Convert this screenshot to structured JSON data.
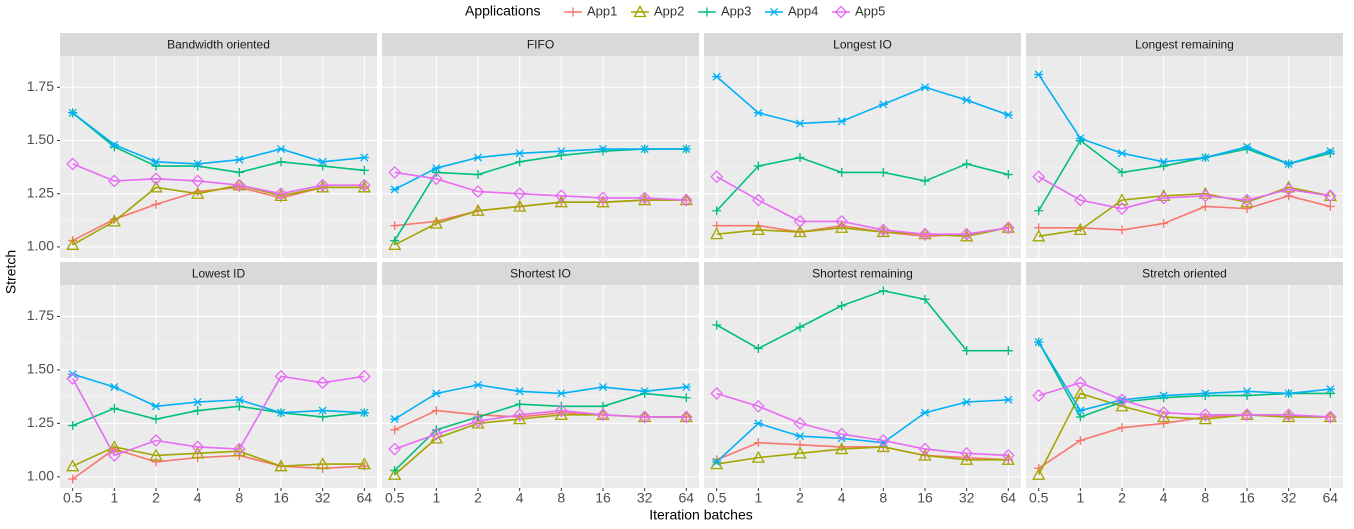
{
  "chart_data": {
    "type": "line",
    "legend_title": "Applications",
    "xlabel": "Iteration batches",
    "ylabel": "Stretch",
    "categories": [
      "0.5",
      "1",
      "2",
      "4",
      "8",
      "16",
      "32",
      "64"
    ],
    "ylim": [
      0.948,
      1.897
    ],
    "yticks": [
      {
        "value": 1,
        "label": "1.00"
      },
      {
        "value": 1.25,
        "label": "1.25"
      },
      {
        "value": 1.5,
        "label": "1.50"
      },
      {
        "value": 1.75,
        "label": "1.75"
      }
    ],
    "grid": true,
    "series": [
      {
        "name": "App1",
        "color": "#F8766D",
        "shape": "plus"
      },
      {
        "name": "App2",
        "color": "#A3A500",
        "shape": "triangle"
      },
      {
        "name": "App3",
        "color": "#00BF7D",
        "shape": "plus"
      },
      {
        "name": "App4",
        "color": "#00B0F6",
        "shape": "asterisk"
      },
      {
        "name": "App5",
        "color": "#E76BF3",
        "shape": "diamond"
      }
    ],
    "facets": [
      {
        "title": "Bandwidth oriented",
        "values": [
          [
            1.03,
            1.13,
            1.2,
            1.26,
            1.28,
            1.23,
            1.28,
            1.28
          ],
          [
            1.01,
            1.12,
            1.28,
            1.25,
            1.29,
            1.24,
            1.28,
            1.28
          ],
          [
            1.63,
            1.47,
            1.38,
            1.38,
            1.35,
            1.4,
            1.38,
            1.36
          ],
          [
            1.63,
            1.48,
            1.4,
            1.39,
            1.41,
            1.46,
            1.4,
            1.42
          ],
          [
            1.39,
            1.31,
            1.32,
            1.31,
            1.29,
            1.25,
            1.29,
            1.29
          ]
        ]
      },
      {
        "title": "FIFO",
        "values": [
          [
            1.1,
            1.12,
            1.17,
            1.19,
            1.21,
            1.21,
            1.22,
            1.22
          ],
          [
            1.01,
            1.11,
            1.17,
            1.19,
            1.21,
            1.21,
            1.22,
            1.22
          ],
          [
            1.03,
            1.35,
            1.34,
            1.4,
            1.43,
            1.45,
            1.46,
            1.46
          ],
          [
            1.27,
            1.37,
            1.42,
            1.44,
            1.45,
            1.46,
            1.46,
            1.46
          ],
          [
            1.35,
            1.32,
            1.26,
            1.25,
            1.24,
            1.23,
            1.23,
            1.22
          ]
        ]
      },
      {
        "title": "Longest IO",
        "values": [
          [
            1.1,
            1.1,
            1.07,
            1.1,
            1.07,
            1.05,
            1.06,
            1.09
          ],
          [
            1.06,
            1.08,
            1.07,
            1.09,
            1.07,
            1.06,
            1.05,
            1.09
          ],
          [
            1.17,
            1.38,
            1.42,
            1.35,
            1.35,
            1.31,
            1.39,
            1.34
          ],
          [
            1.8,
            1.63,
            1.58,
            1.59,
            1.67,
            1.75,
            1.69,
            1.62
          ],
          [
            1.33,
            1.22,
            1.12,
            1.12,
            1.08,
            1.06,
            1.06,
            1.09
          ]
        ]
      },
      {
        "title": "Longest remaining",
        "values": [
          [
            1.09,
            1.09,
            1.08,
            1.11,
            1.19,
            1.18,
            1.24,
            1.19
          ],
          [
            1.05,
            1.08,
            1.22,
            1.24,
            1.25,
            1.21,
            1.28,
            1.24
          ],
          [
            1.17,
            1.5,
            1.35,
            1.38,
            1.42,
            1.46,
            1.39,
            1.44
          ],
          [
            1.81,
            1.51,
            1.44,
            1.4,
            1.42,
            1.47,
            1.39,
            1.45
          ],
          [
            1.33,
            1.22,
            1.18,
            1.23,
            1.24,
            1.22,
            1.27,
            1.24
          ]
        ]
      },
      {
        "title": "Lowest ID",
        "values": [
          [
            0.99,
            1.13,
            1.07,
            1.09,
            1.1,
            1.05,
            1.04,
            1.05
          ],
          [
            1.05,
            1.14,
            1.1,
            1.11,
            1.12,
            1.05,
            1.06,
            1.06
          ],
          [
            1.24,
            1.32,
            1.27,
            1.31,
            1.33,
            1.3,
            1.28,
            1.3
          ],
          [
            1.48,
            1.42,
            1.33,
            1.35,
            1.36,
            1.3,
            1.31,
            1.3
          ],
          [
            1.46,
            1.1,
            1.17,
            1.14,
            1.13,
            1.47,
            1.44,
            1.47
          ]
        ]
      },
      {
        "title": "Shortest IO",
        "values": [
          [
            1.22,
            1.31,
            1.29,
            1.28,
            1.3,
            1.29,
            1.28,
            1.28
          ],
          [
            1.01,
            1.18,
            1.25,
            1.27,
            1.29,
            1.29,
            1.28,
            1.28
          ],
          [
            1.03,
            1.22,
            1.28,
            1.34,
            1.33,
            1.33,
            1.39,
            1.37
          ],
          [
            1.27,
            1.39,
            1.43,
            1.4,
            1.39,
            1.42,
            1.4,
            1.42
          ],
          [
            1.13,
            1.2,
            1.26,
            1.29,
            1.31,
            1.29,
            1.28,
            1.28
          ]
        ]
      },
      {
        "title": "Shortest remaining",
        "values": [
          [
            1.08,
            1.16,
            1.15,
            1.14,
            1.14,
            1.1,
            1.09,
            1.08
          ],
          [
            1.06,
            1.09,
            1.11,
            1.13,
            1.14,
            1.1,
            1.08,
            1.08
          ],
          [
            1.71,
            1.6,
            1.7,
            1.8,
            1.87,
            1.83,
            1.59,
            1.59
          ],
          [
            1.07,
            1.25,
            1.19,
            1.18,
            1.16,
            1.3,
            1.35,
            1.36
          ],
          [
            1.39,
            1.33,
            1.25,
            1.2,
            1.17,
            1.13,
            1.11,
            1.1
          ]
        ]
      },
      {
        "title": "Stretch oriented",
        "values": [
          [
            1.04,
            1.17,
            1.23,
            1.25,
            1.28,
            1.29,
            1.28,
            1.28
          ],
          [
            1.01,
            1.39,
            1.33,
            1.28,
            1.27,
            1.29,
            1.28,
            1.28
          ],
          [
            1.63,
            1.28,
            1.35,
            1.37,
            1.38,
            1.38,
            1.39,
            1.39
          ],
          [
            1.63,
            1.31,
            1.36,
            1.38,
            1.39,
            1.4,
            1.39,
            1.41
          ],
          [
            1.38,
            1.44,
            1.36,
            1.3,
            1.29,
            1.29,
            1.29,
            1.28
          ]
        ]
      }
    ]
  }
}
